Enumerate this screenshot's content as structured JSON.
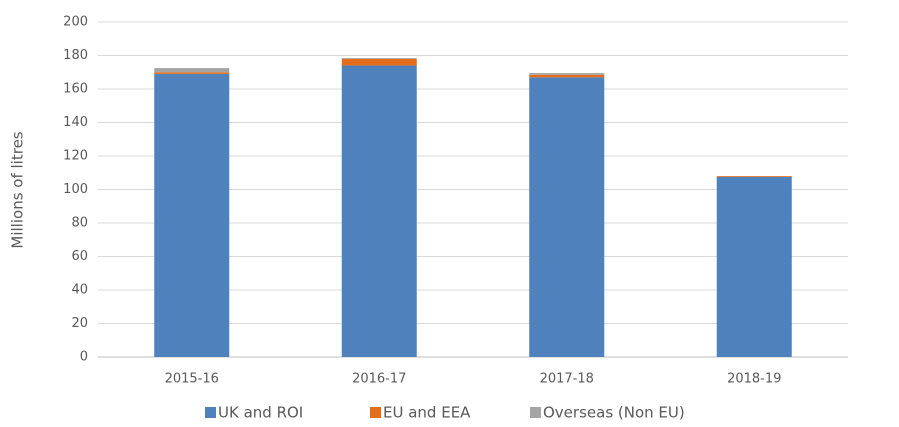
{
  "chart_data": {
    "type": "bar",
    "stacked": true,
    "y_label": "Millions of litres",
    "categories": [
      "2015-16",
      "2016-17",
      "2017-18",
      "2018-19"
    ],
    "series": [
      {
        "name": "UK and ROI",
        "color": "#4f81bd",
        "values": [
          169,
          174,
          167,
          107.5
        ]
      },
      {
        "name": "EU and EEA",
        "color": "#e46c1b",
        "values": [
          1,
          4,
          1.5,
          0.5
        ]
      },
      {
        "name": "Overseas (Non EU)",
        "color": "#a5a5a5",
        "values": [
          2.5,
          0.5,
          1,
          0
        ]
      }
    ],
    "ylim": [
      0,
      200
    ],
    "yticks": [
      0,
      20,
      40,
      60,
      80,
      100,
      120,
      140,
      160,
      180,
      200
    ],
    "grid": true,
    "legend": "bottom"
  }
}
